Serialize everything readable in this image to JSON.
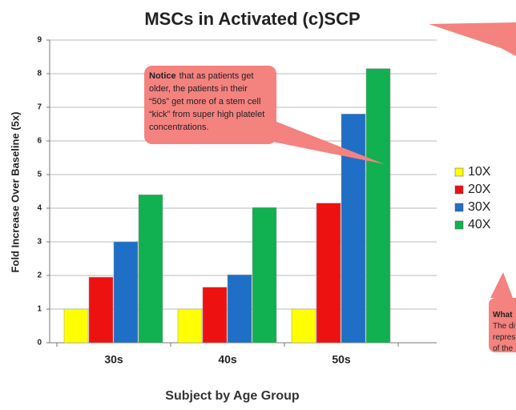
{
  "chart_data": {
    "type": "bar",
    "title": "MSCs in Activated (c)SCP",
    "y_label": "Fold Increase Over Baseline (5x)",
    "x_label": "Subject by Age Group",
    "categories": [
      "30s",
      "40s",
      "50s"
    ],
    "series": [
      {
        "name": "10X",
        "color": "#ffff00",
        "values": [
          1,
          1,
          1
        ]
      },
      {
        "name": "20X",
        "color": "#ee1111",
        "values": [
          1.95,
          1.65,
          4.15
        ]
      },
      {
        "name": "30X",
        "color": "#1f6fc6",
        "values": [
          3,
          2.02,
          6.8
        ]
      },
      {
        "name": "40X",
        "color": "#11b050",
        "values": [
          4.4,
          4.02,
          8.15
        ]
      }
    ],
    "ylim": [
      0,
      9
    ],
    "yticks": [
      0,
      1,
      2,
      3,
      4,
      5,
      6,
      7,
      8,
      9
    ],
    "grid": true,
    "legend": "right",
    "annotations": [
      {
        "lead": "Notice",
        "lines": [
          "that as patients get",
          "older, the patients in their",
          "“50s” get more of a stem cell",
          "“kick” from super high platelet",
          "concentrations."
        ]
      },
      {
        "lead": "What",
        "lines": [
          "The di",
          "repres",
          "of the"
        ]
      }
    ]
  }
}
